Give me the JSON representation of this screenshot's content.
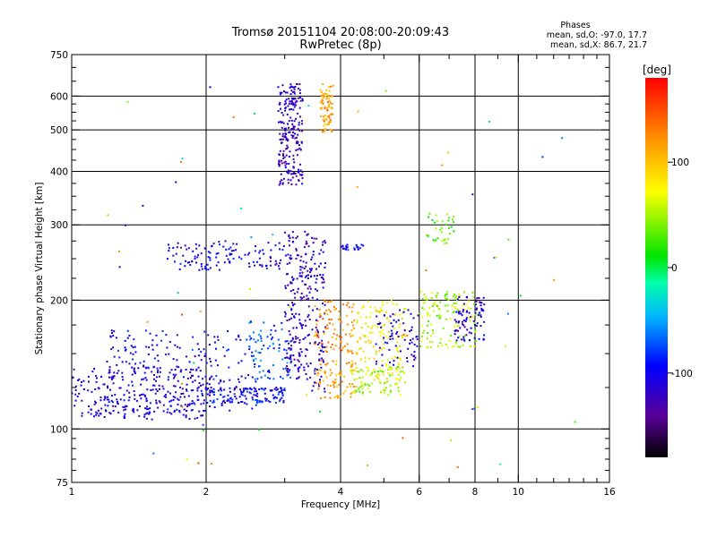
{
  "chart_data": {
    "type": "scatter",
    "title": "Tromsø 20151104 20:08:00-20:09:43",
    "subtitle": "RwPretec (8p)",
    "xlabel": "Frequency [MHz]",
    "ylabel": "Stationary phase Virtual Height [km]",
    "x_scale": "log",
    "y_scale": "log",
    "xlim": [
      1,
      16
    ],
    "ylim": [
      75,
      750
    ],
    "x_ticks": [
      1,
      2,
      4,
      6,
      8,
      10,
      16
    ],
    "x_tick_labels": [
      "1",
      "2",
      "4",
      "6",
      "8",
      "10",
      "16"
    ],
    "y_ticks": [
      75,
      100,
      200,
      300,
      400,
      500,
      600,
      750
    ],
    "y_tick_labels": [
      "75",
      "100",
      "200",
      "300",
      "400",
      "500",
      "600",
      "750"
    ],
    "grid": true,
    "stats": {
      "heading": "Phases",
      "line1": "mean, sd,O: -97.0, 17.7",
      "line2": "mean, sd,X:  86.7, 21.7"
    },
    "colorbar": {
      "label": "[deg]",
      "range": [
        -180,
        180
      ],
      "ticks": [
        100,
        0,
        -100
      ],
      "tick_labels": [
        "100",
        "0",
        "-100"
      ]
    },
    "clusters": [
      {
        "f": [
          1.0,
          2.0
        ],
        "h": [
          105,
          140
        ],
        "phase": -110,
        "n": 260
      },
      {
        "f": [
          1.2,
          2.6
        ],
        "h": [
          110,
          170
        ],
        "phase": -100,
        "n": 220
      },
      {
        "f": [
          2.0,
          3.0
        ],
        "h": [
          115,
          125
        ],
        "phase": -95,
        "n": 120
      },
      {
        "f": [
          2.5,
          3.1
        ],
        "h": [
          130,
          180
        ],
        "phase": -70,
        "n": 80
      },
      {
        "f": [
          1.6,
          3.0
        ],
        "h": [
          235,
          275
        ],
        "phase": -105,
        "n": 120
      },
      {
        "f": [
          2.9,
          3.3
        ],
        "h": [
          370,
          640
        ],
        "phase": -120,
        "n": 220
      },
      {
        "f": [
          3.0,
          3.4
        ],
        "h": [
          130,
          290
        ],
        "phase": -120,
        "n": 180
      },
      {
        "f": [
          3.4,
          3.7
        ],
        "h": [
          120,
          280
        ],
        "phase": -115,
        "n": 100
      },
      {
        "f": [
          3.6,
          3.85
        ],
        "h": [
          490,
          640
        ],
        "phase": 115,
        "n": 80
      },
      {
        "f": [
          3.5,
          4.3
        ],
        "h": [
          150,
          200
        ],
        "phase": 120,
        "n": 90
      },
      {
        "f": [
          3.5,
          4.4
        ],
        "h": [
          118,
          145
        ],
        "phase": 110,
        "n": 80
      },
      {
        "f": [
          4.3,
          5.6
        ],
        "h": [
          130,
          200
        ],
        "phase": 80,
        "n": 140
      },
      {
        "f": [
          4.2,
          5.6
        ],
        "h": [
          120,
          140
        ],
        "phase": 50,
        "n": 80
      },
      {
        "f": [
          4.8,
          6.0
        ],
        "h": [
          140,
          190
        ],
        "phase": -110,
        "n": 70
      },
      {
        "f": [
          6.0,
          8.2
        ],
        "h": [
          155,
          210
        ],
        "phase": 50,
        "n": 140
      },
      {
        "f": [
          7.2,
          8.4
        ],
        "h": [
          160,
          205
        ],
        "phase": -115,
        "n": 80
      },
      {
        "f": [
          6.2,
          7.2
        ],
        "h": [
          270,
          320
        ],
        "phase": 30,
        "n": 35
      },
      {
        "f": [
          4.0,
          4.5
        ],
        "h": [
          262,
          270
        ],
        "phase": -100,
        "n": 25
      },
      {
        "f": [
          1.0,
          14.0
        ],
        "h": [
          80,
          650
        ],
        "phase": 0,
        "n": 70
      }
    ]
  }
}
